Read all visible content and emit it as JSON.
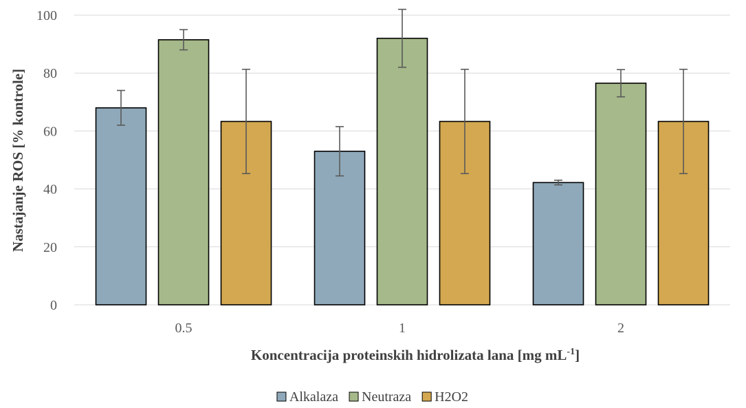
{
  "chart_data": {
    "type": "bar",
    "categories": [
      "0.5",
      "1",
      "2"
    ],
    "series": [
      {
        "name": "Alkalaza",
        "values": [
          68,
          53,
          42.2
        ],
        "errors": [
          6,
          8.5,
          0.8
        ],
        "color": "#8FA9BA"
      },
      {
        "name": "Neutraza",
        "values": [
          91.5,
          92,
          76.5
        ],
        "errors": [
          3.5,
          10,
          4.7
        ],
        "color": "#A6B98A"
      },
      {
        "name": "H2O2",
        "values": [
          63.3,
          63.3,
          63.3
        ],
        "errors": [
          18,
          18,
          18
        ],
        "color": "#D3A850"
      }
    ],
    "ylim": [
      0,
      100
    ],
    "yticks": [
      0,
      20,
      40,
      60,
      80,
      100
    ],
    "ylabel": "Nastajanje ROS [% kontrole]",
    "xlabel_main": "Koncentracija proteinskih hidrolizata lana [mg mL",
    "xlabel_sup": "-1",
    "xlabel_end": "]",
    "grid": true,
    "legend_position": "bottom"
  }
}
